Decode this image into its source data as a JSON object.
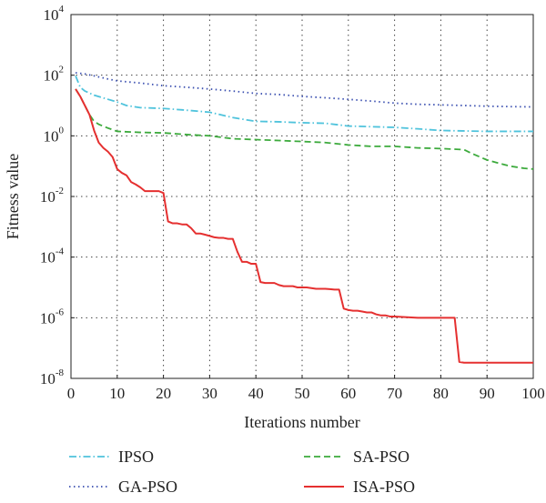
{
  "chart_data": {
    "type": "line",
    "xlabel": "Iterations number",
    "ylabel": "Fitness value",
    "y_scale": "log",
    "xlim": [
      0,
      100
    ],
    "ylim": [
      1e-08,
      10000.0
    ],
    "grid": true,
    "legend_position": "bottom",
    "x_ticks": [
      "0",
      "10",
      "20",
      "30",
      "40",
      "50",
      "60",
      "70",
      "80",
      "90",
      "100"
    ],
    "y_ticks": [
      {
        "base": "10",
        "exp": "4",
        "value": 10000.0
      },
      {
        "base": "10",
        "exp": "2",
        "value": 100.0
      },
      {
        "base": "10",
        "exp": "0",
        "value": 1.0
      },
      {
        "base": "10",
        "exp": "-2",
        "value": 0.01
      },
      {
        "base": "10",
        "exp": "-4",
        "value": 0.0001
      },
      {
        "base": "10",
        "exp": "-6",
        "value": 1e-06
      },
      {
        "base": "10",
        "exp": "-8",
        "value": 1e-08
      }
    ],
    "series": [
      {
        "name": "IPSO",
        "color": "#4fc3dc",
        "dash": "dashdot",
        "x": [
          1,
          2,
          3,
          5,
          8,
          10,
          12,
          15,
          20,
          25,
          30,
          35,
          40,
          45,
          50,
          55,
          60,
          65,
          70,
          75,
          80,
          85,
          90,
          95,
          100
        ],
        "y": [
          95,
          40,
          30,
          22,
          16,
          13,
          10,
          8.5,
          8,
          7,
          6,
          4,
          3,
          2.9,
          2.7,
          2.6,
          2.1,
          2,
          1.9,
          1.7,
          1.5,
          1.45,
          1.4,
          1.4,
          1.4
        ]
      },
      {
        "name": "GA-PSO",
        "color": "#3a4fb0",
        "dash": "dotted",
        "x": [
          1,
          3,
          5,
          8,
          10,
          15,
          20,
          25,
          30,
          35,
          40,
          45,
          50,
          55,
          60,
          65,
          70,
          75,
          80,
          85,
          90,
          95,
          100
        ],
        "y": [
          120,
          110,
          95,
          75,
          65,
          55,
          45,
          40,
          35,
          30,
          25,
          23,
          20,
          18,
          16,
          14,
          12,
          11,
          10.5,
          10,
          9.5,
          9.2,
          9
        ]
      },
      {
        "name": "SA-PSO",
        "color": "#3caa3c",
        "dash": "dashed",
        "x": [
          1,
          2,
          3,
          4,
          5,
          6,
          8,
          10,
          15,
          20,
          25,
          30,
          35,
          40,
          45,
          50,
          55,
          60,
          65,
          70,
          75,
          80,
          85,
          87,
          90,
          93,
          95,
          98,
          100
        ],
        "y": [
          35,
          20,
          10,
          5,
          3,
          2.4,
          1.8,
          1.4,
          1.3,
          1.25,
          1.1,
          1.0,
          0.8,
          0.75,
          0.7,
          0.65,
          0.6,
          0.5,
          0.45,
          0.45,
          0.4,
          0.38,
          0.35,
          0.25,
          0.16,
          0.12,
          0.1,
          0.085,
          0.08
        ]
      },
      {
        "name": "ISA-PSO",
        "color": "#e53030",
        "dash": "solid",
        "x": [
          1,
          2,
          3,
          4,
          5,
          6,
          7,
          8,
          9,
          10,
          11,
          12,
          13,
          14,
          15,
          16,
          17,
          18,
          19,
          20,
          21,
          22,
          23,
          24,
          25,
          26,
          27,
          28,
          29,
          30,
          31,
          32,
          33,
          34,
          35,
          36,
          37,
          38,
          39,
          40,
          41,
          42,
          43,
          44,
          45,
          46,
          47,
          48,
          49,
          50,
          51,
          52,
          53,
          54,
          55,
          56,
          57,
          58,
          59,
          60,
          61,
          62,
          63,
          64,
          65,
          66,
          67,
          68,
          69,
          70,
          75,
          80,
          83,
          84,
          85,
          90,
          95,
          100
        ],
        "y": [
          35,
          20,
          10,
          5,
          1.5,
          0.6,
          0.4,
          0.3,
          0.2,
          0.08,
          0.06,
          0.05,
          0.03,
          0.025,
          0.02,
          0.015,
          0.015,
          0.015,
          0.015,
          0.013,
          0.0015,
          0.0013,
          0.0013,
          0.0012,
          0.0012,
          0.0009,
          0.0006,
          0.0006,
          0.00055,
          0.0005,
          0.00045,
          0.00043,
          0.00043,
          0.0004,
          0.0004,
          0.00015,
          7e-05,
          7e-05,
          6e-05,
          6e-05,
          1.5e-05,
          1.4e-05,
          1.4e-05,
          1.4e-05,
          1.2e-05,
          1.1e-05,
          1.1e-05,
          1.1e-05,
          1e-05,
          1e-05,
          1e-05,
          9.5e-06,
          9e-06,
          9e-06,
          9e-06,
          8.8e-06,
          8.5e-06,
          8.5e-06,
          2e-06,
          1.8e-06,
          1.7e-06,
          1.7e-06,
          1.6e-06,
          1.5e-06,
          1.5e-06,
          1.3e-06,
          1.2e-06,
          1.2e-06,
          1.1e-06,
          1.1e-06,
          1e-06,
          1e-06,
          1e-06,
          3.5e-08,
          3.3e-08,
          3.3e-08,
          3.3e-08,
          3.3e-08
        ]
      }
    ]
  }
}
